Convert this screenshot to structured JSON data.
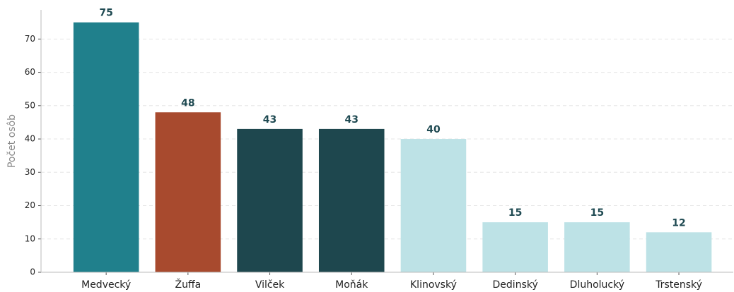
{
  "chart_data": {
    "type": "bar",
    "y_label": "Počet osôb",
    "categories": [
      "Medvecký",
      "Žuffa",
      "Vilček",
      "Moňák",
      "Klinovský",
      "Dedinský",
      "Dluholucký",
      "Trstenský"
    ],
    "values": [
      75,
      48,
      43,
      43,
      40,
      15,
      15,
      12
    ],
    "colors": [
      "#20808c",
      "#a84a2e",
      "#1e474e",
      "#1e474e",
      "#bde2e6",
      "#bde2e6",
      "#bde2e6",
      "#bde2e6"
    ],
    "ylim": [
      0,
      78.75
    ],
    "yticks": [
      0,
      10,
      20,
      30,
      40,
      50,
      60,
      70
    ],
    "grid": true
  }
}
